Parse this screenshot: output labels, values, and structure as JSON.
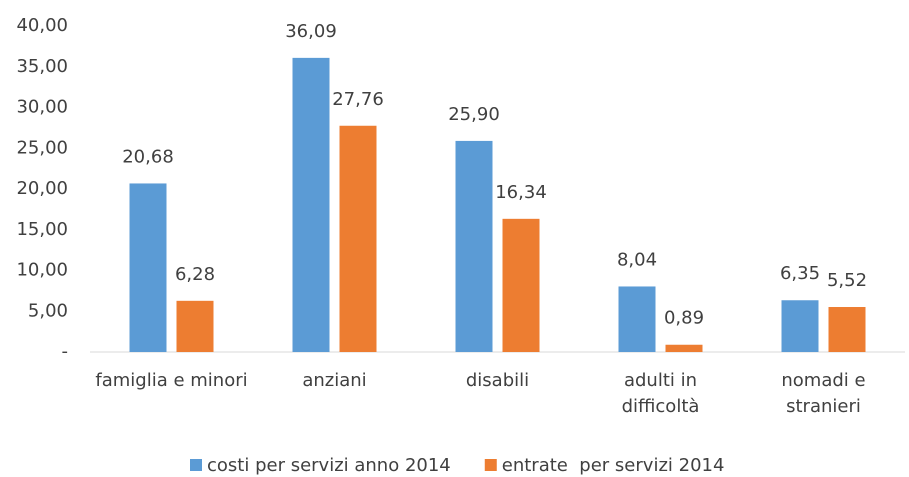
{
  "chart_data": {
    "type": "bar",
    "categories": [
      "famiglia e minori",
      "anziani",
      "disabili",
      "adulti in\ndifficoltà",
      "nomadi e\nstranieri"
    ],
    "series": [
      {
        "name": "costi per servizi anno 2014",
        "color": "#5b9bd5",
        "values": [
          20.68,
          36.09,
          25.9,
          8.04,
          6.35
        ],
        "value_labels": [
          "20,68",
          "36,09",
          "25,90",
          "8,04",
          "6,35"
        ]
      },
      {
        "name": "entrate  per servizi 2014",
        "color": "#ed7d31",
        "values": [
          6.28,
          27.76,
          16.34,
          0.89,
          5.52
        ],
        "value_labels": [
          "6,28",
          "27,76",
          "16,34",
          "0,89",
          "5,52"
        ]
      }
    ],
    "ylim": [
      0,
      40
    ],
    "yticks": [
      {
        "value": 0,
        "label": "-"
      },
      {
        "value": 5,
        "label": "5,00"
      },
      {
        "value": 10,
        "label": "10,00"
      },
      {
        "value": 15,
        "label": "15,00"
      },
      {
        "value": 20,
        "label": "20,00"
      },
      {
        "value": 25,
        "label": "25,00"
      },
      {
        "value": 30,
        "label": "30,00"
      },
      {
        "value": 35,
        "label": "35,00"
      },
      {
        "value": 40,
        "label": "40,00"
      }
    ],
    "grid": false,
    "legend": "bottom"
  }
}
